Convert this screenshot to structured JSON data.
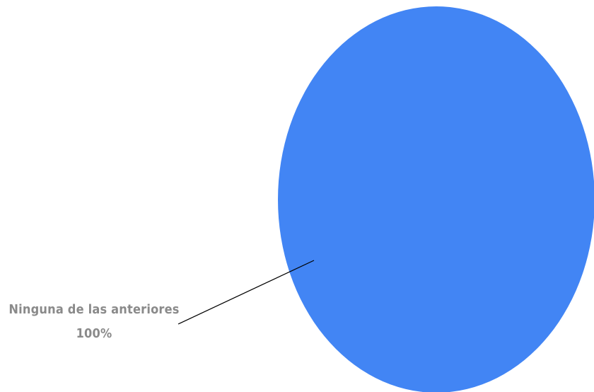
{
  "chart_data": {
    "type": "pie",
    "title": "",
    "slices": [
      {
        "label": "Ninguna de las anteriores",
        "value_label": "100%",
        "value": 100,
        "color": "#4285F4"
      }
    ],
    "legend": "none",
    "label_color": "#8a8a8a",
    "leader_line_color": "#000000"
  }
}
